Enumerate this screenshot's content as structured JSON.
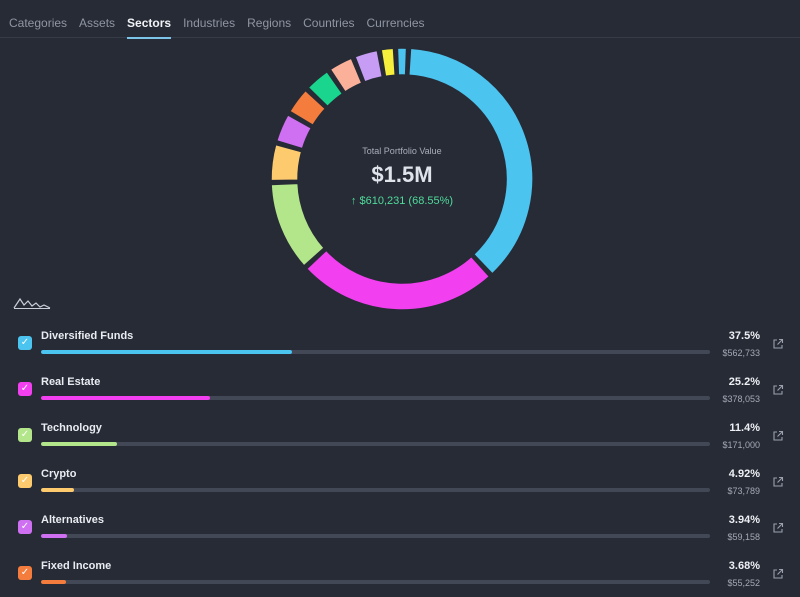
{
  "tabs": [
    {
      "label": "Categories",
      "active": false
    },
    {
      "label": "Assets",
      "active": false
    },
    {
      "label": "Sectors",
      "active": true
    },
    {
      "label": "Industries",
      "active": false
    },
    {
      "label": "Regions",
      "active": false
    },
    {
      "label": "Countries",
      "active": false
    },
    {
      "label": "Currencies",
      "active": false
    }
  ],
  "portfolio": {
    "label": "Total Portfolio Value",
    "value": "$1.5M",
    "change": "↑ $610,231 (68.55%)"
  },
  "donut_segments": [
    {
      "share": 37.5,
      "color": "#4cc4f0"
    },
    {
      "share": 25.2,
      "color": "#f23ff0"
    },
    {
      "share": 11.4,
      "color": "#b3e58a"
    },
    {
      "share": 4.92,
      "color": "#fdcb6e"
    },
    {
      "share": 3.94,
      "color": "#cf6ff2"
    },
    {
      "share": 3.68,
      "color": "#f47c3c"
    },
    {
      "share": 3.5,
      "color": "#19d58e"
    },
    {
      "share": 3.4,
      "color": "#fbb09a"
    },
    {
      "share": 3.3,
      "color": "#c79cf5"
    },
    {
      "share": 2.0,
      "color": "#f6ef3c"
    },
    {
      "share": 1.6,
      "color": "#4cc4f0"
    }
  ],
  "sectors": [
    {
      "name": "Diversified Funds",
      "percent": "37.5%",
      "amount": "$562,733",
      "share": 0.375,
      "color": "#4cc4f0"
    },
    {
      "name": "Real Estate",
      "percent": "25.2%",
      "amount": "$378,053",
      "share": 0.252,
      "color": "#f23ff0"
    },
    {
      "name": "Technology",
      "percent": "11.4%",
      "amount": "$171,000",
      "share": 0.114,
      "color": "#b3e58a"
    },
    {
      "name": "Crypto",
      "percent": "4.92%",
      "amount": "$73,789",
      "share": 0.0492,
      "color": "#fdcb6e"
    },
    {
      "name": "Alternatives",
      "percent": "3.94%",
      "amount": "$59,158",
      "share": 0.0394,
      "color": "#cf6ff2"
    },
    {
      "name": "Fixed Income",
      "percent": "3.68%",
      "amount": "$55,252",
      "share": 0.0368,
      "color": "#f47c3c"
    }
  ],
  "icons": {
    "checkbox": "check-icon",
    "external": "external-link-icon",
    "logo": "mountain-logo-icon"
  }
}
